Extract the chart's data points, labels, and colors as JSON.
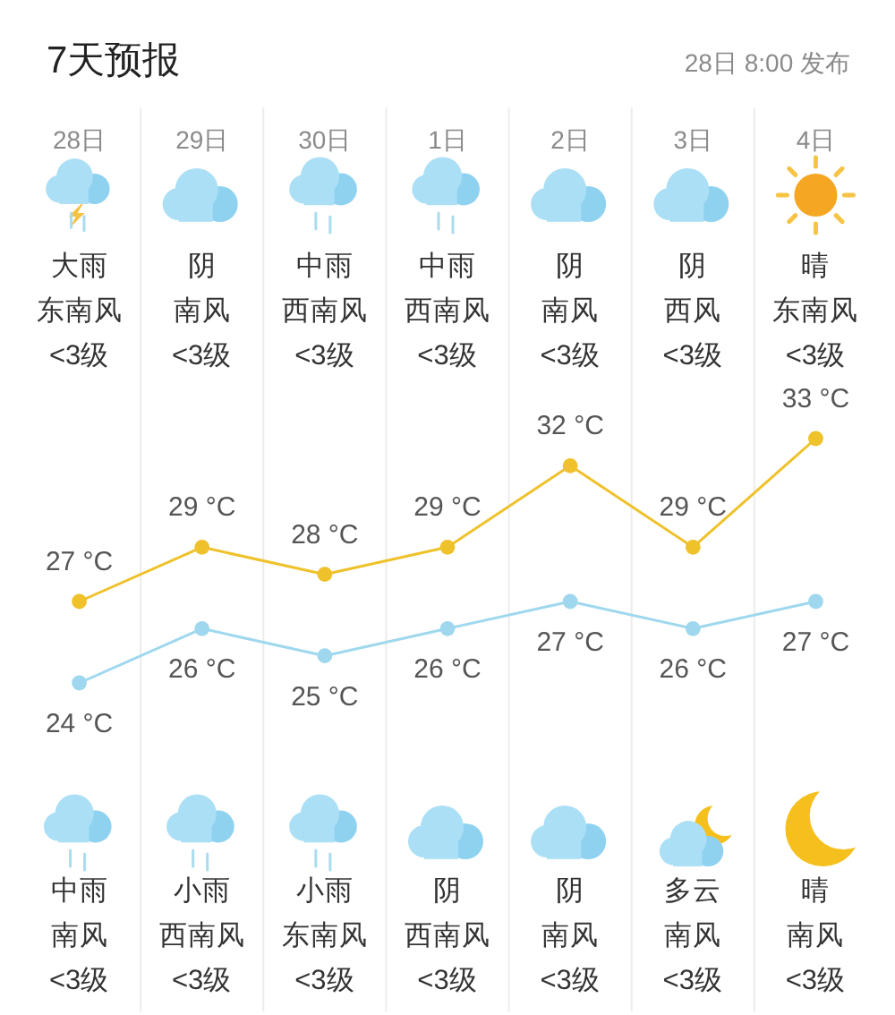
{
  "chart_data": {
    "type": "line",
    "title": "7天预报",
    "subtitle": "28日 8:00 发布",
    "categories": [
      "28日",
      "29日",
      "30日",
      "1日",
      "2日",
      "3日",
      "4日"
    ],
    "series": [
      {
        "color": "#efc12a",
        "values": [
          27,
          29,
          28,
          29,
          32,
          29,
          33
        ],
        "value_labels": [
          "27 °C",
          "29 °C",
          "28 °C",
          "29 °C",
          "32 °C",
          "29 °C",
          "33 °C"
        ]
      },
      {
        "color": "#9fd8ee",
        "values": [
          24,
          26,
          25,
          26,
          27,
          26,
          27
        ],
        "value_labels": [
          "24 °C",
          "26 °C",
          "25 °C",
          "26 °C",
          "27 °C",
          "26 °C",
          "27 °C"
        ]
      }
    ],
    "marker": "circle",
    "grid": "x",
    "annotations": [
      "大雨",
      "阴",
      "中雨",
      "中雨",
      "阴",
      "阴",
      "晴",
      "东南风",
      "南风",
      "西南风",
      "西南风",
      "南风",
      "西风",
      "东南风",
      "<3级",
      "<3级",
      "<3级",
      "<3级",
      "<3级",
      "<3级",
      "<3级",
      "中雨",
      "小雨",
      "小雨",
      "阴",
      "阴",
      "多云",
      "晴",
      "南风",
      "西南风",
      "东南风",
      "西南风",
      "南风",
      "南风",
      "南风",
      "<3级",
      "<3级",
      "<3级",
      "<3级",
      "<3级",
      "<3级",
      "<3级"
    ]
  }
}
